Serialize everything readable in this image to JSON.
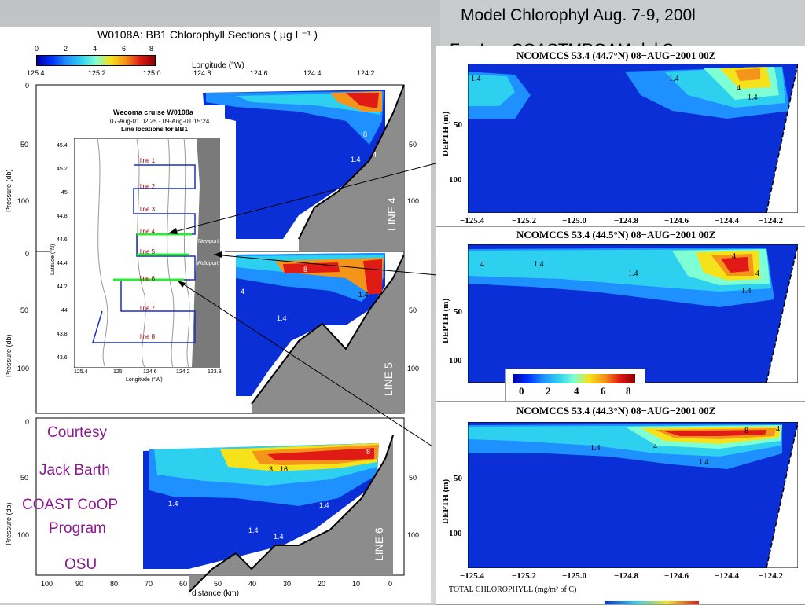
{
  "slide": {
    "title": "Model Chlorophyl Aug. 7-9, 200l",
    "subtitle": "Far-Lay COASTMRGAM del Sm"
  },
  "left_figure": {
    "title": "W0108A:  BB1  Chlorophyll Sections ( μg L⁻¹ )",
    "colorbar_ticks": [
      "0",
      "2",
      "4",
      "6",
      "8"
    ],
    "longitude_ticks": [
      "125.4",
      "125.2",
      "125.0",
      "124.8",
      "124.6",
      "124.4",
      "124.2"
    ],
    "longitude_label": "Longitude (°W)",
    "pressure_label": "Pressure (db)",
    "pressure_ticks": [
      "0",
      "50",
      "100"
    ],
    "distance_ticks": [
      "100",
      "90",
      "80",
      "70",
      "60",
      "50",
      "40",
      "30",
      "20",
      "10",
      "0"
    ],
    "distance_label": "distance (km)",
    "lines": [
      "LINE 4",
      "LINE 5",
      "LINE 6"
    ],
    "contour_labels": [
      "1.4",
      "4",
      "8",
      "16"
    ]
  },
  "inset_map": {
    "title": "Wecoma cruise W0108a",
    "dates": "07-Aug-01 02:25 - 09-Aug-01 15:24",
    "caption": "Line locations for BB1",
    "lat_ticks": [
      "45.4",
      "45.2",
      "45",
      "44.8",
      "44.6",
      "44.4",
      "44.2",
      "44",
      "43.8",
      "43.6"
    ],
    "lon_ticks": [
      "125.4",
      "125",
      "124.6",
      "124.2",
      "123.8"
    ],
    "lat_label": "Latitude (°N)",
    "lon_label": "Longitude (°W)",
    "line_names": [
      "line 1",
      "line 2",
      "line 3",
      "line 4",
      "line 5",
      "line 6",
      "line 7",
      "line 8"
    ],
    "place_labels": [
      "Newport",
      "Waldport"
    ]
  },
  "credit": {
    "line1": "Courtesy",
    "line2": "Jack Barth",
    "line3": "COAST CoOP",
    "line4": "Program",
    "line5": "OSU"
  },
  "model_panels": [
    {
      "title": "NCOMCCS 53.4 (44.7°N) 08−AUG−2001 00Z"
    },
    {
      "title": "NCOMCCS 53.4 (44.5°N) 08−AUG−2001 00Z"
    },
    {
      "title": "NCOMCCS 53.4 (44.3°N) 08−AUG−2001 00Z"
    }
  ],
  "model_axes": {
    "depth_label": "DEPTH (m)",
    "depth_ticks": [
      "50",
      "100"
    ],
    "lon_ticks": [
      "−125.4",
      "−125.2",
      "−125.0",
      "−124.8",
      "−124.6",
      "−124.4",
      "−124.2"
    ],
    "bottom_label": "TOTAL CHLOROPHYLL (mg/m³ of C)",
    "colorbar_ticks": [
      "0",
      "2",
      "4",
      "6",
      "8"
    ]
  },
  "colors": {
    "deep_blue": "#0a2fd6",
    "mid_blue": "#1e7bf2",
    "cyan": "#2ed0f0",
    "yellow": "#f5e21a",
    "orange": "#f5941a",
    "red": "#e01a14",
    "land_gray": "#8c8c8c",
    "credit_purple": "#8b1a8f"
  }
}
